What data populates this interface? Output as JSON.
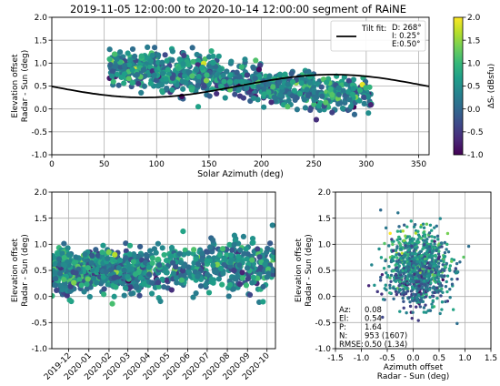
{
  "title": "2019-11-05 12:00:00 to 2020-10-14 12:00:00 segment of RAiNE",
  "colors": {
    "grid": "#b0b0b0",
    "fit_line": "#000000",
    "viridis": [
      "#440154",
      "#482878",
      "#3e4989",
      "#31688e",
      "#26828e",
      "#1f9e89",
      "#35b779",
      "#6ece58",
      "#b5de2b",
      "#fde725"
    ]
  },
  "chart_data": [
    {
      "id": "top",
      "type": "scatter",
      "xlabel": "Solar Azimuth (deg)",
      "ylabel": [
        "Elevation offset",
        "Radar - Sun (deg)"
      ],
      "xlim": [
        0,
        360
      ],
      "ylim": [
        -1.0,
        2.0
      ],
      "xticks": [
        0,
        50,
        100,
        150,
        200,
        250,
        300,
        350
      ],
      "yticks": [
        -1.0,
        -0.5,
        0.0,
        0.5,
        1.0,
        1.5,
        2.0
      ],
      "grid": true,
      "clusters": [
        {
          "x": [
            55,
            105
          ],
          "cy": 0.9,
          "spread": 0.45,
          "n": 230
        },
        {
          "x": [
            105,
            160
          ],
          "cy": 0.75,
          "spread": 0.5,
          "n": 220
        },
        {
          "x": [
            160,
            200
          ],
          "cy": 0.6,
          "spread": 0.45,
          "n": 130
        },
        {
          "x": [
            200,
            250
          ],
          "cy": 0.45,
          "spread": 0.45,
          "n": 190
        },
        {
          "x": [
            250,
            305
          ],
          "cy": 0.3,
          "spread": 0.45,
          "n": 170
        }
      ],
      "fit": {
        "D": 268,
        "I": 0.25,
        "E": 0.5
      },
      "legend": {
        "label": "Tilt fit:",
        "lines": [
          "D: 268°",
          "I: 0.25°",
          "E:0.50°"
        ],
        "loc": "upper right"
      }
    },
    {
      "id": "colorbar",
      "type": "colorbar",
      "label": "ΔSᵣ (dBsfu)",
      "lim": [
        -1.0,
        2.0
      ],
      "ticks": [
        -1.0,
        -0.5,
        0.0,
        0.5,
        1.0,
        1.5,
        2.0
      ]
    },
    {
      "id": "time",
      "type": "scatter",
      "xlabel": "",
      "ylabel": [
        "Elevation offset",
        "Radar - Sun (deg)"
      ],
      "xlim": [
        "2019-11-05",
        "2020-10-14"
      ],
      "ylim": [
        -1.0,
        2.0
      ],
      "xticks": [
        "2019-12",
        "2020-01",
        "2020-02",
        "2020-03",
        "2020-04",
        "2020-05",
        "2020-06",
        "2020-07",
        "2020-08",
        "2020-09",
        "2020-10"
      ],
      "yticks": [
        -1.0,
        -0.5,
        0.0,
        0.5,
        1.0,
        1.5,
        2.0
      ],
      "grid": true,
      "segments": [
        {
          "x": [
            "2019-11-05",
            "2020-01-20"
          ],
          "cy": 0.5,
          "spread": 0.45,
          "n": 380
        },
        {
          "x": [
            "2020-01-20",
            "2020-04-01"
          ],
          "cy": 0.5,
          "spread": 0.45,
          "n": 300
        },
        {
          "x": [
            "2020-04-01",
            "2020-07-01"
          ],
          "cy": 0.5,
          "spread": 0.5,
          "n": 180
        },
        {
          "x": [
            "2020-07-01",
            "2020-10-14"
          ],
          "cy": 0.6,
          "spread": 0.55,
          "n": 260
        }
      ]
    },
    {
      "id": "azel",
      "type": "scatter",
      "xlabel": [
        "Azimuth offset",
        "Radar - Sun (deg)"
      ],
      "ylabel": [
        "Elevation offset",
        "Radar - Sun (deg)"
      ],
      "xlim": [
        -1.5,
        1.5
      ],
      "ylim": [
        -1.0,
        2.0
      ],
      "xticks": [
        -1.5,
        -1.0,
        -0.5,
        0.0,
        0.5,
        1.0,
        1.5
      ],
      "yticks": [
        -1.0,
        -0.5,
        0.0,
        0.5,
        1.0,
        1.5,
        2.0
      ],
      "grid": true,
      "center": {
        "x": 0.08,
        "y": 0.54
      },
      "spread": {
        "x": 0.3,
        "y": 0.35
      },
      "n": 1000,
      "stats": [
        {
          "label": "Az:",
          "value": "0.08"
        },
        {
          "label": "El:",
          "value": "0.54"
        },
        {
          "label": "P:",
          "value": "1.64"
        },
        {
          "label": "N:",
          "value": "953 (1607)"
        },
        {
          "label": "RMSE:",
          "value": "0.50 (1.34)"
        }
      ]
    }
  ]
}
